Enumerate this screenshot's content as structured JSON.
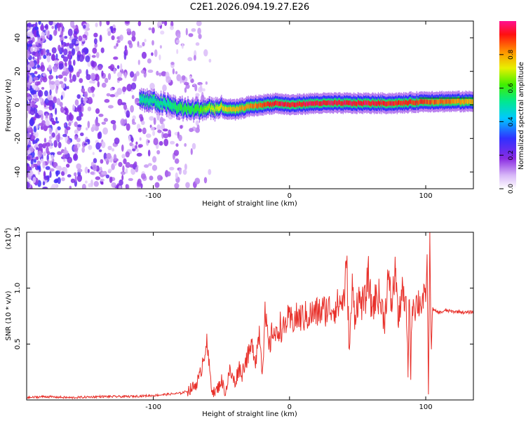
{
  "figure": {
    "title": "C2E1.2026.094.19.27.E26"
  },
  "colors": {
    "snr_line": "#e8302a",
    "axis": "#000000",
    "background": "#ffffff"
  },
  "chart_data": [
    {
      "type": "heatmap",
      "name": "spectrogram",
      "xlabel": "Height of straight line (km)",
      "ylabel": "Frequency (Hz)",
      "xlim": [
        -193,
        135
      ],
      "ylim": [
        -50,
        50
      ],
      "xticks": [
        -100,
        0,
        100
      ],
      "xtick_labels": [
        "-100",
        "0",
        "100"
      ],
      "yticks": [
        -40,
        -20,
        0,
        20,
        40
      ],
      "ytick_labels": [
        "-40",
        "-20",
        "0",
        "20",
        "40"
      ],
      "colorbar": {
        "label": "Normalized spectral amplitude",
        "range": [
          0,
          1
        ],
        "ticks": [
          0,
          0.2,
          0.4,
          0.6,
          0.8
        ],
        "tick_labels": [
          "0.0",
          "0.2",
          "0.4",
          "0.6",
          "0.8"
        ],
        "colormap": "rainbow (white-violet-blue-cyan-green-yellow-red-magenta)"
      },
      "ridge": {
        "description": "Signal ridge: noisy scatter below ~-70 km, concentrated near 0 Hz from -110 km upward, rising slightly to ~2 Hz by 130 km",
        "x": [
          -110,
          -100,
          -90,
          -80,
          -70,
          -60,
          -50,
          -40,
          -30,
          -20,
          -10,
          0,
          20,
          40,
          60,
          80,
          100,
          120,
          135
        ],
        "freq": [
          3,
          2,
          0,
          -2,
          -3,
          -2,
          -2,
          -3,
          -1,
          0,
          1,
          0,
          1,
          1,
          1,
          1,
          2,
          2,
          2
        ],
        "amplitude": [
          0.5,
          0.5,
          0.5,
          0.6,
          0.6,
          0.7,
          0.75,
          0.8,
          0.85,
          0.9,
          0.95,
          0.95,
          0.97,
          0.97,
          0.97,
          0.95,
          0.9,
          0.85,
          0.8
        ]
      }
    },
    {
      "type": "line",
      "name": "snr",
      "xlabel": "Height of straight line (km)",
      "ylabel": "SNR (10 * v/v)",
      "y_multiplier_label": "(x10",
      "y_multiplier_exponent": "4",
      "xlim": [
        -193,
        135
      ],
      "ylim": [
        0,
        1.5
      ],
      "xticks": [
        -100,
        0,
        100
      ],
      "xtick_labels": [
        "-100",
        "0",
        "100"
      ],
      "yticks": [
        0.5,
        1.0,
        1.5
      ],
      "ytick_labels": [
        "0.5",
        "1.0",
        "1.5"
      ],
      "series": [
        {
          "name": "SNR",
          "x": [
            -193,
            -180,
            -160,
            -140,
            -120,
            -100,
            -90,
            -80,
            -75,
            -70,
            -66,
            -63,
            -61,
            -59,
            -57,
            -55,
            -52,
            -50,
            -47,
            -44,
            -40,
            -37,
            -35,
            -33,
            -30,
            -27,
            -25,
            -22,
            -20,
            -18,
            -15,
            -12,
            -10,
            -7,
            -5,
            -2,
            0,
            5,
            10,
            15,
            20,
            25,
            30,
            35,
            40,
            42,
            44,
            46,
            48,
            50,
            55,
            58,
            60,
            65,
            70,
            72,
            75,
            78,
            80,
            82,
            84,
            86,
            87,
            88,
            89,
            90,
            92,
            94,
            96,
            98,
            100,
            101,
            102,
            103,
            104,
            105,
            106,
            110,
            115,
            120,
            125,
            130,
            135
          ],
          "values": [
            0.02,
            0.03,
            0.02,
            0.03,
            0.03,
            0.04,
            0.05,
            0.06,
            0.08,
            0.12,
            0.2,
            0.4,
            0.52,
            0.3,
            0.1,
            0.06,
            0.12,
            0.18,
            0.06,
            0.26,
            0.15,
            0.3,
            0.22,
            0.34,
            0.4,
            0.5,
            0.35,
            0.63,
            0.25,
            0.75,
            0.45,
            0.65,
            0.55,
            0.68,
            0.6,
            0.72,
            0.7,
            0.73,
            0.74,
            0.76,
            0.78,
            0.8,
            0.82,
            0.84,
            0.9,
            1.22,
            0.42,
            1.0,
            0.75,
            0.9,
            0.85,
            1.12,
            0.82,
            0.95,
            0.72,
            1.1,
            0.85,
            1.18,
            0.65,
            0.98,
            0.88,
            0.76,
            0.25,
            1.05,
            0.18,
            0.9,
            0.85,
            0.88,
            0.87,
            0.9,
            0.85,
            1.3,
            0.05,
            1.5,
            0.4,
            0.82,
            0.8,
            0.78,
            0.8,
            0.79,
            0.79,
            0.78,
            0.79
          ]
        }
      ]
    }
  ]
}
